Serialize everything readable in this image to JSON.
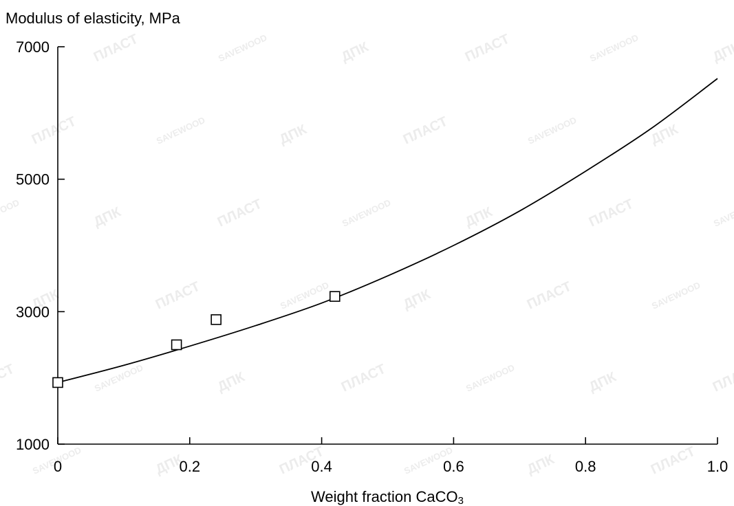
{
  "chart_data": {
    "type": "scatter",
    "ylabel": "Modulus of elasticity, MPa",
    "xlabel_main": "Weight fraction CaCO",
    "xlabel_sub": "3",
    "xlim": [
      0,
      1.0
    ],
    "ylim": [
      1000,
      7000
    ],
    "xticks": [
      0,
      0.2,
      0.4,
      0.6,
      0.8,
      1.0
    ],
    "xtick_labels": [
      "0",
      "0.2",
      "0.4",
      "0.6",
      "0.8",
      "1.0"
    ],
    "yticks": [
      1000,
      3000,
      5000,
      7000
    ],
    "ytick_labels": [
      "1000",
      "3000",
      "5000",
      "7000"
    ],
    "points": [
      {
        "x": 0.0,
        "y": 1930
      },
      {
        "x": 0.18,
        "y": 2500
      },
      {
        "x": 0.24,
        "y": 2880
      },
      {
        "x": 0.42,
        "y": 3230
      }
    ],
    "fit_curve": {
      "x": [
        0,
        0.1,
        0.2,
        0.3,
        0.4,
        0.5,
        0.6,
        0.7,
        0.8,
        0.9,
        1.0
      ],
      "y": [
        1930,
        2190,
        2480,
        2790,
        3130,
        3540,
        4000,
        4520,
        5120,
        5770,
        6520
      ]
    },
    "grid": false,
    "legend": "none"
  },
  "watermark": [
    "ДПК",
    "ПЛАСТ",
    "SAVEWOOD"
  ]
}
